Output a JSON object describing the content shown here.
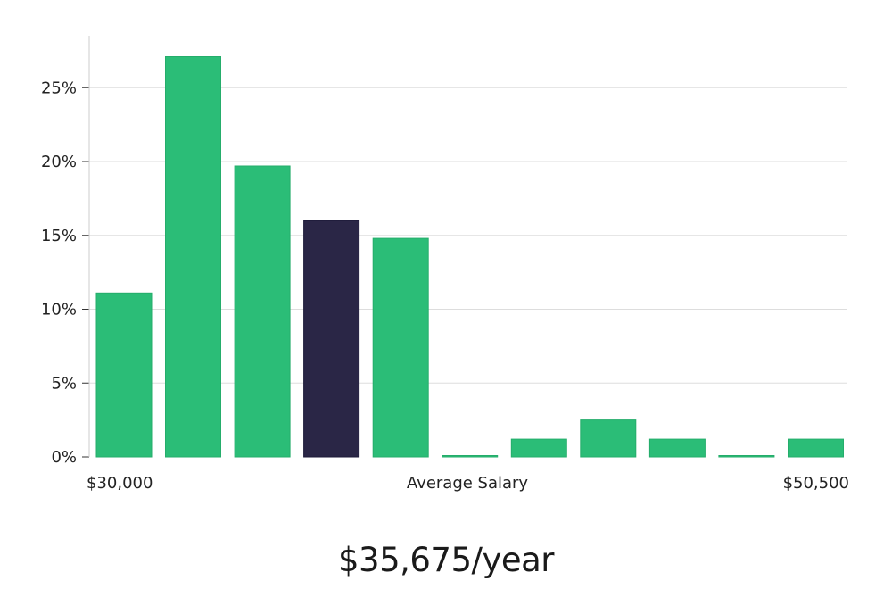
{
  "chart_data": {
    "type": "bar",
    "xlabel": "Average Salary",
    "x_start_label": "$30,000",
    "x_end_label": "$50,500",
    "ylim": [
      0,
      28
    ],
    "yticks": [
      0,
      5,
      10,
      15,
      20,
      25
    ],
    "ytick_labels": [
      "0%",
      "5%",
      "10%",
      "15%",
      "20%",
      "25%"
    ],
    "grid": true,
    "bars": [
      {
        "value": 11.1,
        "highlight": false
      },
      {
        "value": 27.1,
        "highlight": false
      },
      {
        "value": 19.7,
        "highlight": false
      },
      {
        "value": 16.0,
        "highlight": true
      },
      {
        "value": 14.8,
        "highlight": false
      },
      {
        "value": 0.0,
        "highlight": false
      },
      {
        "value": 1.2,
        "highlight": false
      },
      {
        "value": 2.5,
        "highlight": false
      },
      {
        "value": 1.2,
        "highlight": false
      },
      {
        "value": 0.0,
        "highlight": false
      },
      {
        "value": 1.2,
        "highlight": false
      }
    ],
    "colors": {
      "bar": "#2bbd77",
      "highlight": "#2a2646",
      "grid": "#dddddd",
      "axis": "#cccccc"
    }
  },
  "salary": {
    "display": "$35,675/year"
  }
}
